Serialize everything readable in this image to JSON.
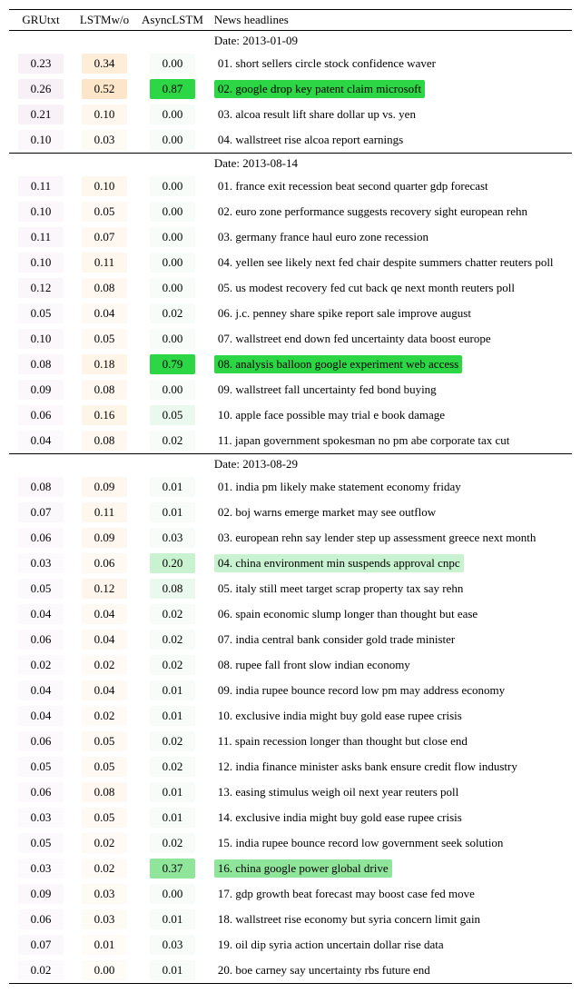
{
  "columns": {
    "c1": "GRUtxt",
    "c2": "LSTMw/o",
    "c3": "AsyncLSTM",
    "c4": "News headlines"
  },
  "colors": {
    "gru_base": [
      245,
      235,
      245
    ],
    "lstm_base": [
      253,
      236,
      215
    ],
    "async_base": [
      235,
      250,
      238
    ],
    "highlight_strong": "#2dd644",
    "highlight_med": "#8fe69b",
    "highlight_light": "#c9f2d0"
  },
  "sections": [
    {
      "date": "Date: 2013-01-09",
      "rows": [
        {
          "g": "0.23",
          "l": "0.34",
          "a": "0.00",
          "hl": "01. short sellers circle stock confidence waver",
          "hlColor": null
        },
        {
          "g": "0.26",
          "l": "0.52",
          "a": "0.87",
          "hl": "02. google drop key patent claim microsoft",
          "hlColor": "#2dd644"
        },
        {
          "g": "0.21",
          "l": "0.10",
          "a": "0.00",
          "hl": "03. alcoa result lift share dollar up vs. yen",
          "hlColor": null
        },
        {
          "g": "0.10",
          "l": "0.03",
          "a": "0.00",
          "hl": "04. wallstreet rise alcoa report earnings",
          "hlColor": null
        }
      ]
    },
    {
      "date": "Date: 2013-08-14",
      "rows": [
        {
          "g": "0.11",
          "l": "0.10",
          "a": "0.00",
          "hl": "01. france exit recession beat second quarter gdp forecast",
          "hlColor": null
        },
        {
          "g": "0.10",
          "l": "0.05",
          "a": "0.00",
          "hl": "02. euro zone performance suggests recovery sight european rehn",
          "hlColor": null
        },
        {
          "g": "0.11",
          "l": "0.07",
          "a": "0.00",
          "hl": "03. germany france haul euro zone recession",
          "hlColor": null
        },
        {
          "g": "0.10",
          "l": "0.11",
          "a": "0.00",
          "hl": "04. yellen see likely next fed chair despite summers chatter reuters poll",
          "hlColor": null
        },
        {
          "g": "0.12",
          "l": "0.08",
          "a": "0.00",
          "hl": "05. us modest recovery fed cut back qe next month reuters poll",
          "hlColor": null
        },
        {
          "g": "0.05",
          "l": "0.04",
          "a": "0.02",
          "hl": "06. j.c. penney share spike report sale improve august",
          "hlColor": null
        },
        {
          "g": "0.10",
          "l": "0.05",
          "a": "0.00",
          "hl": "07. wallstreet end down fed uncertainty data boost europe",
          "hlColor": null
        },
        {
          "g": "0.08",
          "l": "0.18",
          "a": "0.79",
          "hl": "08. analysis balloon google experiment web access",
          "hlColor": "#2dd644"
        },
        {
          "g": "0.09",
          "l": "0.08",
          "a": "0.00",
          "hl": "09. wallstreet fall uncertainty fed bond buying",
          "hlColor": null
        },
        {
          "g": "0.06",
          "l": "0.16",
          "a": "0.05",
          "hl": "10. apple face possible may trial e book damage",
          "hlColor": null
        },
        {
          "g": "0.04",
          "l": "0.08",
          "a": "0.02",
          "hl": "11. japan government spokesman no pm abe corporate tax cut",
          "hlColor": null
        }
      ]
    },
    {
      "date": "Date: 2013-08-29",
      "rows": [
        {
          "g": "0.08",
          "l": "0.09",
          "a": "0.01",
          "hl": "01. india pm likely make statement economy friday",
          "hlColor": null
        },
        {
          "g": "0.07",
          "l": "0.11",
          "a": "0.01",
          "hl": "02. boj warns emerge market may see outflow",
          "hlColor": null
        },
        {
          "g": "0.06",
          "l": "0.09",
          "a": "0.03",
          "hl": "03. european rehn say lender step up assessment greece next month",
          "hlColor": null
        },
        {
          "g": "0.03",
          "l": "0.06",
          "a": "0.20",
          "hl": "04. china environment min suspends approval cnpc",
          "hlColor": "#c9f2d0"
        },
        {
          "g": "0.05",
          "l": "0.12",
          "a": "0.08",
          "hl": "05. italy still meet target scrap property tax say rehn",
          "hlColor": null
        },
        {
          "g": "0.04",
          "l": "0.04",
          "a": "0.02",
          "hl": "06. spain economic slump longer than thought but ease",
          "hlColor": null
        },
        {
          "g": "0.06",
          "l": "0.04",
          "a": "0.02",
          "hl": "07. india central bank consider gold trade minister",
          "hlColor": null
        },
        {
          "g": "0.02",
          "l": "0.02",
          "a": "0.02",
          "hl": "08. rupee fall front slow indian economy",
          "hlColor": null
        },
        {
          "g": "0.04",
          "l": "0.04",
          "a": "0.01",
          "hl": "09. india rupee bounce record low pm may address economy",
          "hlColor": null
        },
        {
          "g": "0.04",
          "l": "0.02",
          "a": "0.01",
          "hl": "10. exclusive india might buy gold ease rupee crisis",
          "hlColor": null
        },
        {
          "g": "0.06",
          "l": "0.05",
          "a": "0.02",
          "hl": "11. spain recession longer than thought but close end",
          "hlColor": null
        },
        {
          "g": "0.05",
          "l": "0.05",
          "a": "0.02",
          "hl": "12. india finance minister asks bank ensure credit flow industry",
          "hlColor": null
        },
        {
          "g": "0.06",
          "l": "0.08",
          "a": "0.01",
          "hl": "13. easing stimulus weigh oil next year reuters poll",
          "hlColor": null
        },
        {
          "g": "0.03",
          "l": "0.05",
          "a": "0.01",
          "hl": "14. exclusive india might buy gold ease rupee crisis",
          "hlColor": null
        },
        {
          "g": "0.05",
          "l": "0.02",
          "a": "0.02",
          "hl": "15. india rupee bounce record low government seek solution",
          "hlColor": null
        },
        {
          "g": "0.03",
          "l": "0.02",
          "a": "0.37",
          "hl": "16. china google power global drive",
          "hlColor": "#8fe69b"
        },
        {
          "g": "0.09",
          "l": "0.03",
          "a": "0.00",
          "hl": "17. gdp growth beat forecast may boost case fed move",
          "hlColor": null
        },
        {
          "g": "0.06",
          "l": "0.03",
          "a": "0.01",
          "hl": "18. wallstreet rise economy but syria concern limit gain",
          "hlColor": null
        },
        {
          "g": "0.07",
          "l": "0.01",
          "a": "0.03",
          "hl": "19. oil dip syria action uncertain dollar rise data",
          "hlColor": null
        },
        {
          "g": "0.02",
          "l": "0.00",
          "a": "0.01",
          "hl": "20. boe carney say uncertainty rbs future end",
          "hlColor": null
        }
      ]
    }
  ]
}
